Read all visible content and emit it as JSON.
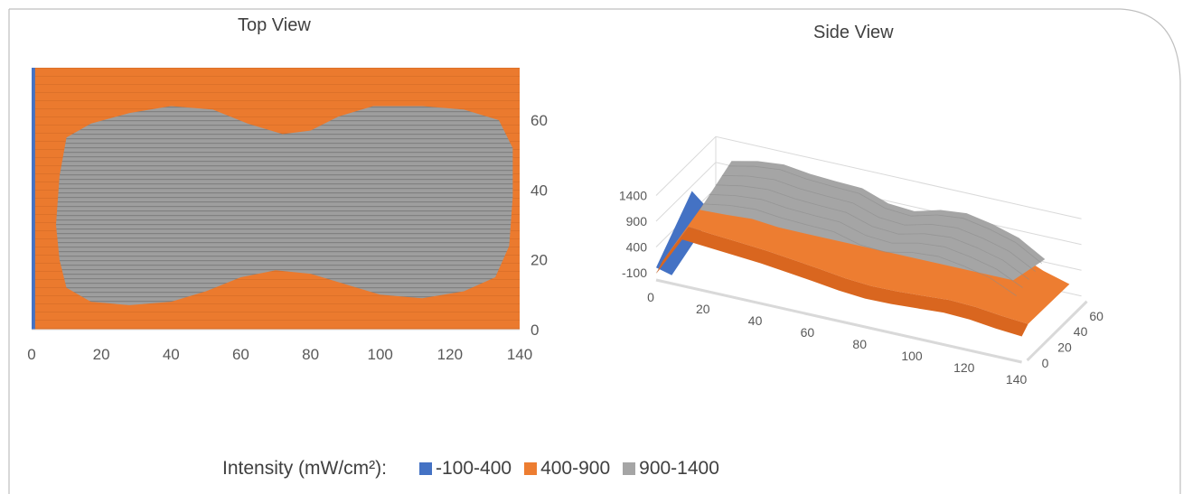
{
  "legend": {
    "label": "Intensity (mW/cm²):",
    "items": [
      {
        "name": "-100-400",
        "color": "#4472c4"
      },
      {
        "name": "400-900",
        "color": "#ed7d31"
      },
      {
        "name": "900-1400",
        "color": "#a5a5a5"
      }
    ]
  },
  "chart_data": [
    {
      "type": "heatmap",
      "title": "Top View",
      "x_ticks": [
        0,
        20,
        40,
        60,
        80,
        100,
        120,
        140
      ],
      "y_ticks": [
        0,
        20,
        40,
        60
      ],
      "xlim": [
        0,
        140
      ],
      "ylim": [
        0,
        75
      ],
      "z_bands": [
        {
          "name": "-100-400",
          "range": [
            -100,
            400
          ],
          "color": "#4472c4"
        },
        {
          "name": "400-900",
          "range": [
            400,
            900
          ],
          "color": "#ed7d31"
        },
        {
          "name": "900-1400",
          "range": [
            900,
            1400
          ],
          "color": "#a5a5a5"
        }
      ],
      "low_region_x_max": 1,
      "high_region_outline": [
        [
          10,
          12
        ],
        [
          8,
          20
        ],
        [
          7,
          30
        ],
        [
          8,
          44
        ],
        [
          10,
          55
        ],
        [
          17,
          59
        ],
        [
          28,
          62
        ],
        [
          40,
          64
        ],
        [
          52,
          63
        ],
        [
          62,
          59
        ],
        [
          72,
          56
        ],
        [
          80,
          57
        ],
        [
          88,
          61
        ],
        [
          98,
          64
        ],
        [
          112,
          64
        ],
        [
          124,
          63
        ],
        [
          134,
          60
        ],
        [
          138,
          52
        ],
        [
          138,
          38
        ],
        [
          137,
          24
        ],
        [
          133,
          15
        ],
        [
          124,
          11
        ],
        [
          112,
          9
        ],
        [
          100,
          10
        ],
        [
          90,
          13
        ],
        [
          80,
          16
        ],
        [
          70,
          17
        ],
        [
          60,
          15
        ],
        [
          50,
          11
        ],
        [
          40,
          8
        ],
        [
          28,
          7
        ],
        [
          17,
          8
        ]
      ]
    },
    {
      "type": "area",
      "title": "Side View",
      "z_ticks": [
        -100,
        400,
        900,
        1400
      ],
      "x_ticks": [
        0,
        20,
        40,
        60,
        80,
        100,
        120,
        140
      ],
      "y_ticks": [
        0,
        20,
        40,
        60
      ],
      "zlim": [
        -100,
        1400
      ],
      "profile_back": {
        "x": [
          0,
          10,
          20,
          30,
          40,
          50,
          60,
          70,
          80,
          90,
          100,
          110,
          120,
          130,
          140
        ],
        "z": [
          450,
          1240,
          1350,
          1400,
          1330,
          1300,
          1280,
          1100,
          1060,
          1200,
          1250,
          1150,
          1000,
          700,
          500
        ]
      },
      "profile_front": {
        "x": [
          0,
          10,
          20,
          30,
          40,
          50,
          60,
          70,
          80,
          90,
          100,
          110,
          120,
          130,
          140
        ],
        "z": [
          0,
          780,
          740,
          700,
          660,
          600,
          540,
          470,
          430,
          440,
          470,
          500,
          480,
          420,
          380
        ]
      }
    }
  ]
}
